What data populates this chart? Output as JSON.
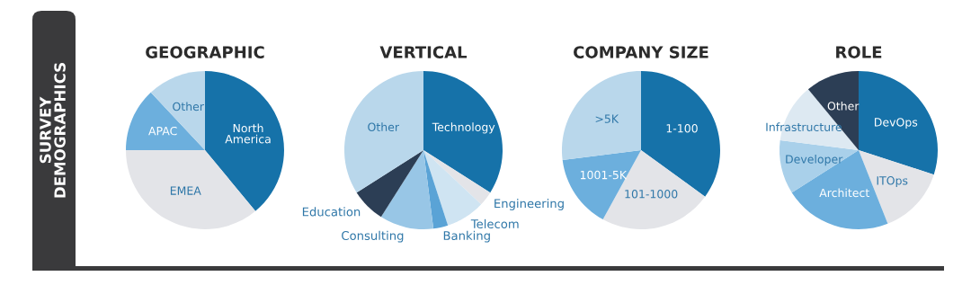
{
  "chart_data": [
    {
      "type": "other",
      "title": "SURVEY DEMOGRAPHICS"
    },
    {
      "type": "pie",
      "title": "GEOGRAPHIC",
      "categories": [
        "North America",
        "EMEA",
        "APAC",
        "Other"
      ],
      "values": [
        39,
        36,
        13,
        12
      ],
      "colors": [
        "#1672a9",
        "#e3e4e8",
        "#6cafdd",
        "#b9d7eb"
      ]
    },
    {
      "type": "pie",
      "title": "VERTICAL",
      "categories": [
        "Technology",
        "Engineering",
        "Telecom",
        "Banking",
        "Consulting",
        "Education",
        "Other"
      ],
      "values": [
        34,
        3,
        8,
        3,
        11,
        7,
        34
      ],
      "colors": [
        "#1672a9",
        "#e3e4e8",
        "#cfe4f2",
        "#5aa3d6",
        "#98c6e6",
        "#2c3e55",
        "#b9d7eb"
      ]
    },
    {
      "type": "pie",
      "title": "COMPANY SIZE",
      "categories": [
        "1-100",
        "101-1000",
        "1001-5K",
        ">5K"
      ],
      "values": [
        35,
        23,
        15,
        27
      ],
      "colors": [
        "#1672a9",
        "#e3e4e8",
        "#6cafdd",
        "#b9d7eb"
      ]
    },
    {
      "type": "pie",
      "title": "ROLE",
      "categories": [
        "DevOps",
        "ITOps",
        "Architect",
        "Developer",
        "Infrastructure",
        "Other"
      ],
      "values": [
        30,
        14,
        22,
        11,
        12,
        11
      ],
      "colors": [
        "#1672a9",
        "#e3e4e8",
        "#6cafdd",
        "#a9d0ea",
        "#dde9f2",
        "#2c3e55"
      ]
    }
  ]
}
